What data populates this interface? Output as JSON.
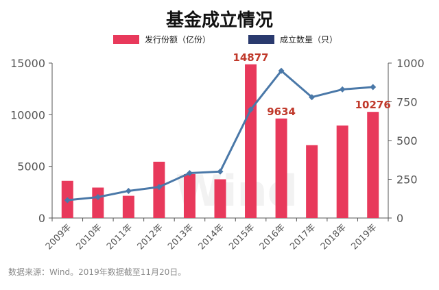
{
  "chart_data": {
    "type": "bar",
    "title": "基金成立情况",
    "categories": [
      "2009年",
      "2010年",
      "2011年",
      "2012年",
      "2013年",
      "2014年",
      "2015年",
      "2016年",
      "2017年",
      "2018年",
      "2019年"
    ],
    "series": [
      {
        "name": "发行份额（亿份）",
        "type": "bar",
        "axis": "left",
        "color": "#e8395b",
        "values": [
          3600,
          2950,
          2150,
          5450,
          4250,
          3750,
          14877,
          9634,
          7050,
          8950,
          10276
        ],
        "data_labels": [
          "",
          "",
          "",
          "",
          "",
          "",
          "14877",
          "9634",
          "",
          "",
          "10276"
        ]
      },
      {
        "name": "成立数量（只）",
        "type": "line",
        "axis": "right",
        "color": "#4a78a8",
        "values": [
          115,
          135,
          175,
          200,
          290,
          300,
          700,
          950,
          780,
          830,
          845
        ]
      }
    ],
    "yleft": {
      "ylim": [
        0,
        15000
      ],
      "ticks": [
        "0",
        "5000",
        "10000",
        "15000"
      ]
    },
    "yright": {
      "ylim": [
        0,
        1000
      ],
      "ticks": [
        "0",
        "250",
        "500",
        "750",
        "1000"
      ]
    },
    "legend_position": "top-center",
    "grid": false,
    "label_color": "#c0392b",
    "legend_line_color": "#2a3a6e",
    "watermark": "Wind"
  },
  "source_note": "数据来源：Wind。2019年数据截至11月20日。"
}
